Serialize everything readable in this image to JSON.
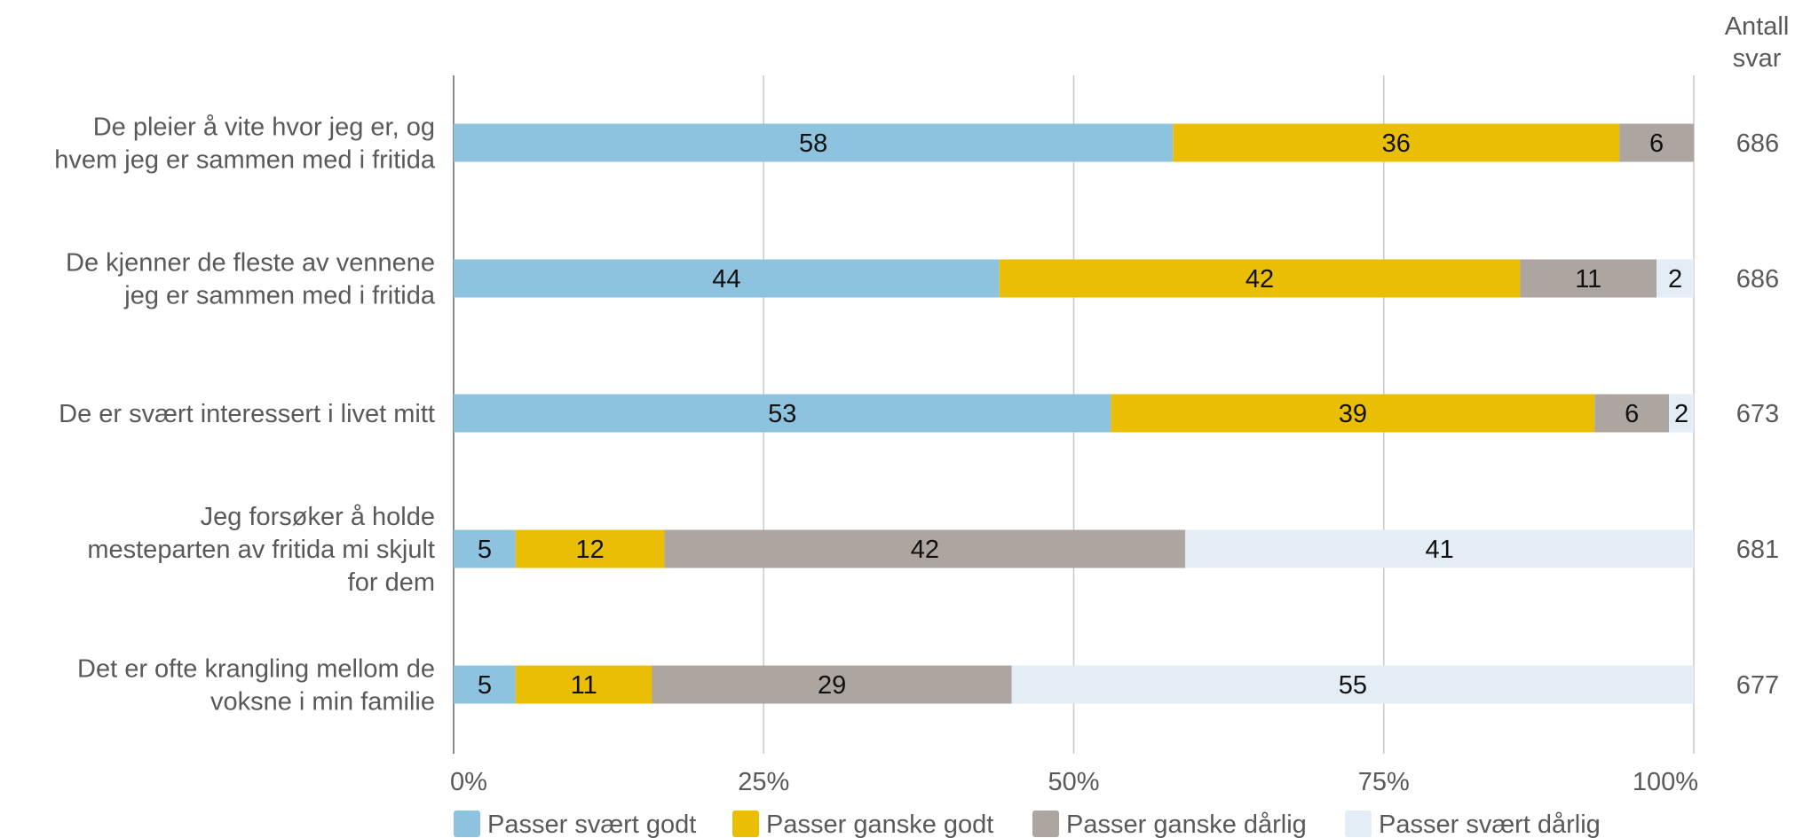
{
  "chart_data": {
    "type": "bar",
    "orientation": "horizontal",
    "stacked": true,
    "categories": [
      [
        "De pleier å vite hvor jeg er, og",
        "hvem jeg er sammen med i fritida"
      ],
      [
        "De kjenner de fleste av vennene",
        "jeg er sammen med i fritida"
      ],
      [
        "De er svært interessert i livet mitt"
      ],
      [
        "Jeg forsøker å holde",
        "mesteparten av fritida mi skjult",
        "for dem"
      ],
      [
        "Det er ofte krangling mellom de",
        "voksne i min familie"
      ]
    ],
    "series": [
      {
        "name": "Passer svært godt",
        "color": "#8dc3df",
        "values": [
          58,
          44,
          53,
          5,
          5
        ],
        "labels": [
          "58",
          "44",
          "53",
          "5",
          "5"
        ]
      },
      {
        "name": "Passer ganske godt",
        "color": "#e9be05",
        "values": [
          36,
          42,
          39,
          12,
          11
        ],
        "labels": [
          "36",
          "42",
          "39",
          "12",
          "11"
        ]
      },
      {
        "name": "Passer ganske dårlig",
        "color": "#ada59f",
        "values": [
          6,
          11,
          6,
          42,
          29
        ],
        "labels": [
          "6",
          "11",
          "6",
          "42",
          "29"
        ]
      },
      {
        "name": "Passer svært dårlig",
        "color": "#e2edf5",
        "values": [
          1,
          2,
          2,
          41,
          55
        ],
        "labels": [
          "",
          "2",
          "2",
          "41",
          "55"
        ]
      }
    ],
    "xticks": [
      "0%",
      "25%",
      "50%",
      "75%",
      "100%"
    ],
    "xlim": [
      0,
      100
    ],
    "grid": true,
    "legend": "bottom",
    "counts_header": [
      "Antall",
      "svar"
    ],
    "counts": [
      "686",
      "686",
      "673",
      "681",
      "677"
    ]
  }
}
